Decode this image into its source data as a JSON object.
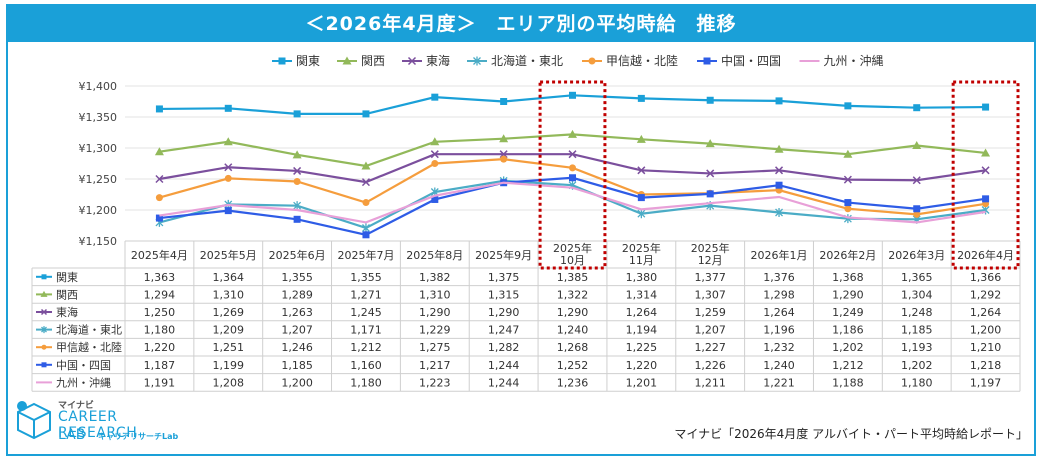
{
  "title": "＜2026年4月度＞　エリア別の平均時給　推移",
  "source": "マイナビ「2026年4月度 アルバイト・パート平均時給レポート」",
  "logo": {
    "top": "マイナビ",
    "main": "CAREER RESEARCH",
    "sub": "LAB",
    "sub2": "キャリアリサーチLab"
  },
  "colors": {
    "banner": "#1aa0d8",
    "highlight": "#c00000"
  },
  "chart_data": {
    "type": "line",
    "categories": [
      "2025年4月",
      "2025年5月",
      "2025年6月",
      "2025年7月",
      "2025年8月",
      "2025年9月",
      "2025年\n10月",
      "2025年\n11月",
      "2025年\n12月",
      "2026年1月",
      "2026年2月",
      "2026年3月",
      "2026年4月"
    ],
    "ylim": [
      1150,
      1400
    ],
    "yticks": [
      1150,
      1200,
      1250,
      1300,
      1350,
      1400
    ],
    "ytick_labels": [
      "¥1,150",
      "¥1,200",
      "¥1,250",
      "¥1,300",
      "¥1,350",
      "¥1,400"
    ],
    "legend_position": "top",
    "highlighted_categories": [
      6,
      12
    ],
    "series": [
      {
        "name": "関東",
        "color": "#1aa0d8",
        "marker": "square",
        "values": [
          1363,
          1364,
          1355,
          1355,
          1382,
          1375,
          1385,
          1380,
          1377,
          1376,
          1368,
          1365,
          1366
        ]
      },
      {
        "name": "関西",
        "color": "#92b95a",
        "marker": "triangle",
        "values": [
          1294,
          1310,
          1289,
          1271,
          1310,
          1315,
          1322,
          1314,
          1307,
          1298,
          1290,
          1304,
          1292
        ]
      },
      {
        "name": "東海",
        "color": "#7b4f9d",
        "marker": "x",
        "values": [
          1250,
          1269,
          1263,
          1245,
          1290,
          1290,
          1290,
          1264,
          1259,
          1264,
          1249,
          1248,
          1264
        ]
      },
      {
        "name": "北海道・東北",
        "color": "#4bacc6",
        "marker": "star",
        "values": [
          1180,
          1209,
          1207,
          1171,
          1229,
          1247,
          1240,
          1194,
          1207,
          1196,
          1186,
          1185,
          1200
        ]
      },
      {
        "name": "甲信越・北陸",
        "color": "#f59d3d",
        "marker": "circle",
        "values": [
          1220,
          1251,
          1246,
          1212,
          1275,
          1282,
          1268,
          1225,
          1227,
          1232,
          1202,
          1193,
          1210
        ]
      },
      {
        "name": "中国・四国",
        "color": "#2e5ce6",
        "marker": "square",
        "values": [
          1187,
          1199,
          1185,
          1160,
          1217,
          1244,
          1252,
          1220,
          1226,
          1240,
          1212,
          1202,
          1218
        ]
      },
      {
        "name": "九州・沖縄",
        "color": "#e8a0d8",
        "marker": "none",
        "values": [
          1191,
          1208,
          1200,
          1180,
          1223,
          1244,
          1236,
          1201,
          1211,
          1221,
          1188,
          1180,
          1197
        ]
      }
    ]
  }
}
